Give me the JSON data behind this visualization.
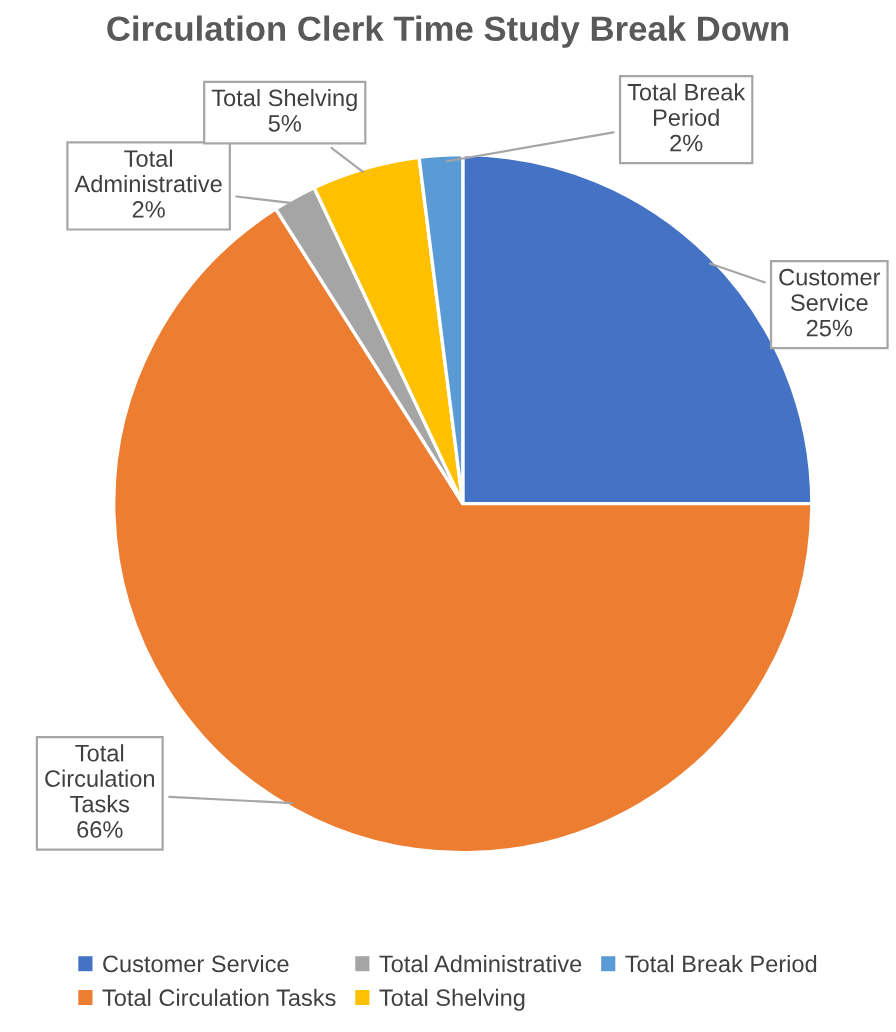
{
  "chart_data": {
    "type": "pie",
    "title": "Circulation Clerk Time Study Break Down",
    "categories": [
      "Customer Service",
      "Total Circulation Tasks",
      "Total Administrative",
      "Total Shelving",
      "Total Break Period"
    ],
    "values": [
      25,
      66,
      2,
      5,
      2
    ],
    "colors": [
      "#4472c4",
      "#ed7d31",
      "#a5a5a5",
      "#ffc000",
      "#5b9bd5"
    ],
    "value_labels": [
      "25%",
      "66%",
      "2%",
      "5%",
      "2%"
    ],
    "legend": "bottom"
  }
}
